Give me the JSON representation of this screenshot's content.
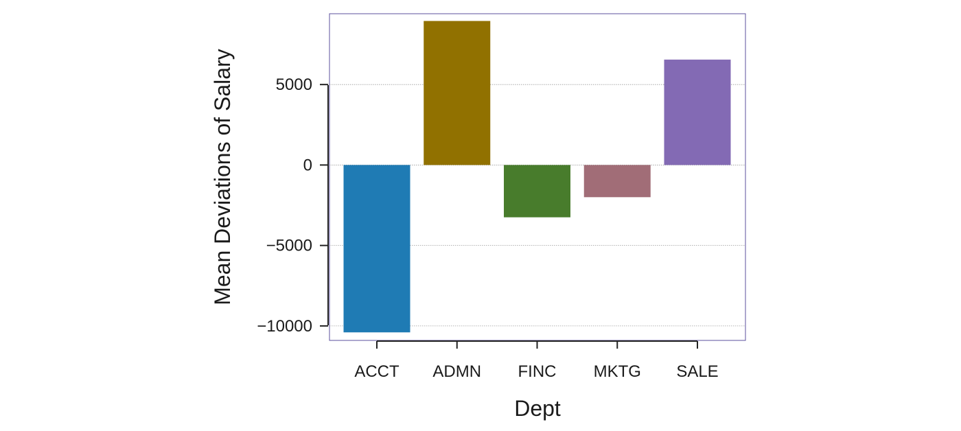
{
  "chart_data": {
    "type": "bar",
    "title": "",
    "xlabel": "Dept",
    "ylabel": "Mean Deviations of Salary",
    "categories": [
      "ACCT",
      "ADMN",
      "FINC",
      "MKTG",
      "SALE"
    ],
    "values": [
      -10400,
      8950,
      -3250,
      -2000,
      6550
    ],
    "colors": [
      "#1f7bb4",
      "#917100",
      "#487c2c",
      "#a16d77",
      "#836ab4"
    ],
    "ylim": [
      -10900,
      9400
    ],
    "yticks": [
      -10000,
      -5000,
      0,
      5000
    ],
    "ytick_labels": [
      "−10000",
      "−5000",
      "0",
      "5000"
    ],
    "grid": true,
    "legend": "none"
  }
}
